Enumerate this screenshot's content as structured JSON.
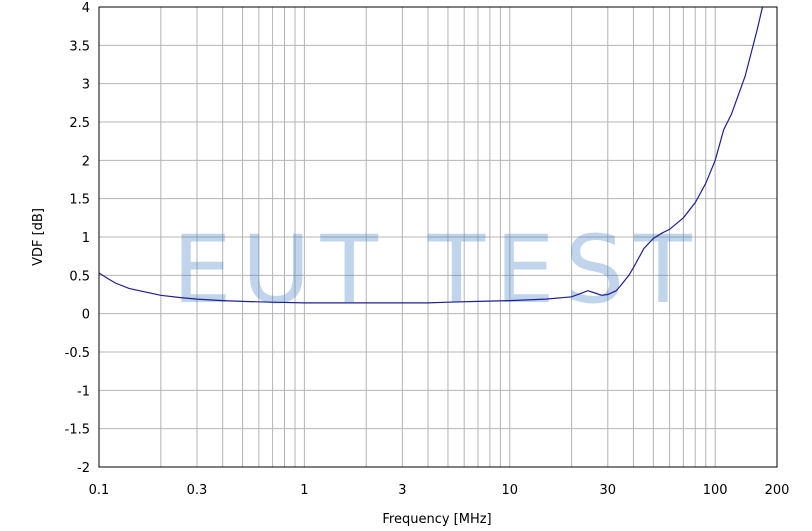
{
  "watermark": "EUT TEST",
  "chart_data": {
    "type": "line",
    "xlabel": "Frequency [MHz]",
    "ylabel": "VDF [dB]",
    "xscale": "log",
    "xlim": [
      0.1,
      200
    ],
    "ylim": [
      -2,
      4
    ],
    "grid": true,
    "x_tick_labels": [
      "0.1",
      "0.3",
      "1",
      "3",
      "10",
      "30",
      "100",
      "200"
    ],
    "y_tick_labels": [
      "4",
      "3.5",
      "3",
      "2.5",
      "2",
      "1.5",
      "1",
      "0.5",
      "0",
      "-0.5",
      "-1",
      "-1.5",
      "-2"
    ],
    "line_color": "#1f1f8f",
    "series": [
      {
        "x": [
          0.1,
          0.11,
          0.12,
          0.14,
          0.17,
          0.2,
          0.25,
          0.3,
          0.4,
          0.5,
          0.7,
          1,
          2,
          3,
          4,
          5,
          7,
          10,
          15,
          20,
          22,
          24,
          26,
          28,
          30,
          33,
          35,
          38,
          40,
          45,
          50,
          55,
          60,
          70,
          80,
          90,
          100,
          110,
          120,
          140,
          160,
          170
        ],
        "y": [
          0.53,
          0.46,
          0.4,
          0.33,
          0.28,
          0.24,
          0.21,
          0.19,
          0.17,
          0.16,
          0.15,
          0.14,
          0.14,
          0.14,
          0.14,
          0.15,
          0.16,
          0.17,
          0.19,
          0.22,
          0.26,
          0.3,
          0.27,
          0.24,
          0.25,
          0.3,
          0.38,
          0.5,
          0.6,
          0.85,
          0.98,
          1.05,
          1.1,
          1.25,
          1.45,
          1.7,
          2.0,
          2.4,
          2.6,
          3.1,
          3.7,
          4.0
        ]
      }
    ]
  }
}
